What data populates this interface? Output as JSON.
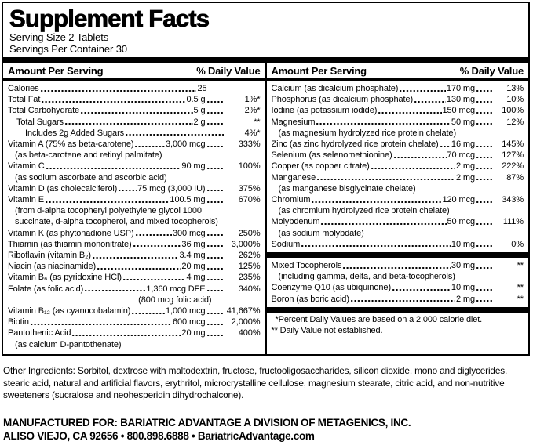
{
  "title": "Supplement Facts",
  "serving_size": "Serving Size 2 Tablets",
  "servings_per_container": "Servings Per Container 30",
  "column_header": {
    "amount": "Amount Per Serving",
    "daily_value": "% Daily Value"
  },
  "left_column": {
    "rows": [
      {
        "type": "item",
        "name": "Calories",
        "amount": "25",
        "dv": ""
      },
      {
        "type": "item",
        "name": "Total Fat",
        "amount": "0.5 g",
        "dv": "1%*"
      },
      {
        "type": "item",
        "name": "Total Carbohydrate",
        "amount": "5 g",
        "dv": "2%*"
      },
      {
        "type": "item",
        "name": "Total Sugars",
        "amount": "2 g",
        "dv": "**",
        "indent": 1
      },
      {
        "type": "item",
        "name": "Includes 2g Added Sugars",
        "dv": "4%*",
        "indent": 2,
        "no_amount": true
      },
      {
        "type": "item",
        "name": "Vitamin A (75% as beta-carotene)",
        "amount": "3,000 mcg",
        "dv": "333%",
        "subs": [
          "(as beta-carotene and retinyl palmitate)"
        ]
      },
      {
        "type": "item",
        "name": "Vitamin C",
        "amount": "90 mg",
        "dv": "100%",
        "subs": [
          "(as sodium ascorbate and ascorbic acid)"
        ]
      },
      {
        "type": "item",
        "name": "Vitamin D (as cholecalciferol)",
        "amount": "75 mcg (3,000 IU)",
        "dv": "375%"
      },
      {
        "type": "item",
        "name": "Vitamin E",
        "amount": "100.5 mg",
        "dv": "670%",
        "subs": [
          "(from d-alpha tocopheryl polyethylene glycol 1000",
          "succinate, d-alpha tocopherol, and mixed tocopherols)"
        ]
      },
      {
        "type": "item",
        "name": "Vitamin K (as phytonadione USP)",
        "amount": "300 mcg",
        "dv": "250%"
      },
      {
        "type": "item",
        "name": "Thiamin (as thiamin mononitrate)",
        "amount": "36 mg",
        "dv": "3,000%"
      },
      {
        "type": "item",
        "name": "Riboflavin (vitamin B₂)",
        "amount": "3.4 mg",
        "dv": "262%"
      },
      {
        "type": "item",
        "name": "Niacin (as niacinamide)",
        "amount": "20 mg",
        "dv": "125%"
      },
      {
        "type": "item",
        "name": "Vitamin B₆ (as pyridoxine HCl)",
        "amount": "4 mg",
        "dv": "235%"
      },
      {
        "type": "item",
        "name": "Folate (as folic acid)",
        "amount": "1,360 mcg DFE",
        "dv": "340%",
        "subs": [
          "(800 mcg folic acid)"
        ],
        "sub_align": "amount"
      },
      {
        "type": "item",
        "name": "Vitamin B₁₂ (as cyanocobalamin)",
        "amount": "1,000 mcg",
        "dv": "41,667%"
      },
      {
        "type": "item",
        "name": "Biotin",
        "amount": "600 mcg",
        "dv": "2,000%"
      },
      {
        "type": "item",
        "name": "Pantothenic Acid",
        "amount": "20 mg",
        "dv": "400%",
        "subs": [
          "(as calcium D-pantothenate)"
        ]
      }
    ]
  },
  "right_column": {
    "rows": [
      {
        "type": "item",
        "name": "Calcium (as dicalcium phosphate)",
        "amount": "170 mg",
        "dv": "13%"
      },
      {
        "type": "item",
        "name": "Phosphorus (as dicalcium phosphate)",
        "amount": "130 mg",
        "dv": "10%"
      },
      {
        "type": "item",
        "name": "Iodine (as potassium iodide)",
        "amount": "150 mcg",
        "dv": "100%"
      },
      {
        "type": "item",
        "name": "Magnesium",
        "amount": "50 mg",
        "dv": "12%",
        "subs": [
          "(as magnesium hydrolyzed rice protein chelate)"
        ]
      },
      {
        "type": "item",
        "name": "Zinc (as zinc hydrolyzed rice protein chelate)",
        "amount": "16 mg",
        "dv": "145%"
      },
      {
        "type": "item",
        "name": "Selenium (as selenomethionine)",
        "amount": "70 mcg",
        "dv": "127%"
      },
      {
        "type": "item",
        "name": "Copper (as copper citrate)",
        "amount": "2 mg",
        "dv": "222%"
      },
      {
        "type": "item",
        "name": "Manganese",
        "amount": "2 mg",
        "dv": "87%",
        "subs": [
          "(as manganese bisglycinate chelate)"
        ]
      },
      {
        "type": "item",
        "name": "Chromium",
        "amount": "120 mcg",
        "dv": "343%",
        "subs": [
          "(as chromium hydrolyzed rice protein chelate)"
        ]
      },
      {
        "type": "item",
        "name": "Molybdenum",
        "amount": "50 mcg",
        "dv": "111%",
        "subs": [
          "(as sodium molybdate)"
        ]
      },
      {
        "type": "item",
        "name": "Sodium",
        "amount": "10 mg",
        "dv": "0%"
      },
      {
        "type": "bar"
      },
      {
        "type": "item",
        "name": "Mixed Tocopherols",
        "amount": "30 mg",
        "dv": "**",
        "subs": [
          "(including gamma, delta, and beta-tocopherols)"
        ]
      },
      {
        "type": "item",
        "name": "Coenzyme Q10 (as ubiquinone)",
        "amount": "10 mg",
        "dv": "**"
      },
      {
        "type": "item",
        "name": "Boron (as boric acid)",
        "amount": "2 mg",
        "dv": "**"
      },
      {
        "type": "bar"
      },
      {
        "type": "note",
        "text": "*Percent Daily Values are based on a 2,000 calorie diet.",
        "indented": true
      },
      {
        "type": "note",
        "text": "** Daily Value not established."
      }
    ]
  },
  "other_ingredients": "Other Ingredients: Sorbitol, dextrose with maltodextrin, fructose, fructooligosaccharides, silicon dioxide, mono and diglycerides, stearic acid, natural and artificial flavors, erythritol, microcrystalline cellulose, magnesium stearate, citric acid, and non-nutritive sweeteners (sucralose and neohesperidin dihydrochalcone).",
  "manufactured": {
    "line1": "MANUFACTURED FOR: BARIATRIC ADVANTAGE A DIVISION OF METAGENICS, INC.",
    "line2": "ALISO VIEJO, CA 92656 • 800.898.6888 • BariatricAdvantage.com"
  },
  "colors": {
    "text": "#000000",
    "background": "#ffffff"
  }
}
